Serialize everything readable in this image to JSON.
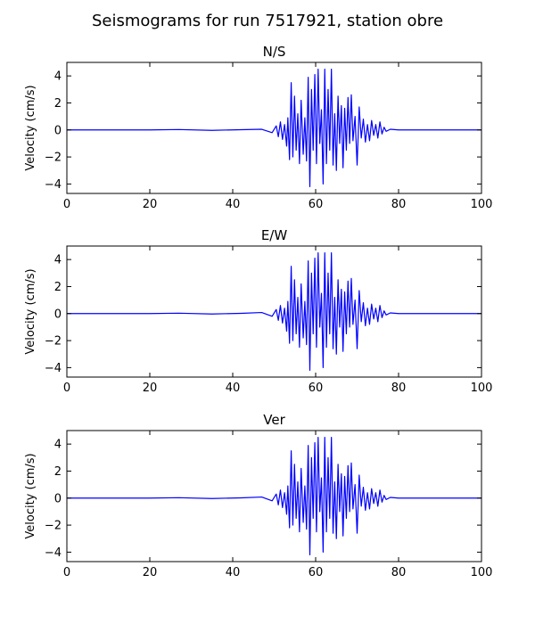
{
  "figure": {
    "title": "Seismograms for run 7517921, station obre"
  },
  "chart_data": [
    {
      "type": "line",
      "title": "N/S",
      "xlabel": "",
      "ylabel": "Velocity (cm/s)",
      "xlim": [
        0,
        100
      ],
      "ylim": [
        -4.7,
        5.0
      ],
      "xticks": [
        0,
        20,
        40,
        60,
        80,
        100
      ],
      "yticks": [
        -4,
        -2,
        0,
        2,
        4
      ],
      "grid": false,
      "line_color": "#0000ff",
      "series": [
        {
          "x": [
            0,
            10,
            20,
            27,
            35,
            42,
            47,
            49.5,
            50.5,
            51,
            51.5,
            52,
            52.5,
            53,
            53.3,
            53.7,
            54.1,
            54.5,
            54.9,
            55.3,
            55.7,
            56.1,
            56.5,
            57,
            57.4,
            57.8,
            58.2,
            58.6,
            59,
            59.4,
            59.8,
            60.2,
            60.6,
            61,
            61.4,
            61.8,
            62.2,
            62.6,
            63,
            63.4,
            63.8,
            64.2,
            64.6,
            65,
            65.4,
            65.8,
            66.2,
            66.6,
            67,
            67.4,
            67.8,
            68.2,
            68.6,
            69,
            69.5,
            70,
            70.5,
            71,
            71.5,
            72,
            72.5,
            73,
            73.5,
            74,
            74.5,
            75,
            75.5,
            76,
            76.5,
            77,
            78,
            80,
            90,
            100
          ],
          "y": [
            0,
            0,
            0,
            0.03,
            -0.03,
            0.02,
            0.05,
            -0.2,
            0.3,
            -0.5,
            0.6,
            -0.7,
            0.4,
            -1.2,
            0.9,
            -2.2,
            3.5,
            -2.0,
            2.5,
            -1.5,
            1.2,
            -2.5,
            2.2,
            -1.8,
            0.9,
            -2.3,
            3.9,
            -4.2,
            3.0,
            -1.5,
            4.1,
            -2.5,
            4.5,
            -1.0,
            1.5,
            -4.0,
            4.5,
            -2.5,
            3.0,
            -1.5,
            4.5,
            -2.6,
            1.2,
            -3.0,
            2.5,
            -1.0,
            1.8,
            -2.8,
            1.6,
            -1.5,
            2.4,
            -1.0,
            2.6,
            -0.8,
            1.0,
            -2.6,
            1.7,
            -0.6,
            0.8,
            -0.9,
            0.4,
            -0.8,
            0.7,
            -0.4,
            0.4,
            -0.6,
            0.6,
            -0.3,
            0.2,
            -0.1,
            0.05,
            0,
            0,
            0
          ]
        }
      ]
    },
    {
      "type": "line",
      "title": "E/W",
      "xlabel": "",
      "ylabel": "Velocity (cm/s)",
      "xlim": [
        0,
        100
      ],
      "ylim": [
        -4.7,
        5.0
      ],
      "xticks": [
        0,
        20,
        40,
        60,
        80,
        100
      ],
      "yticks": [
        -4,
        -2,
        0,
        2,
        4
      ],
      "grid": false,
      "line_color": "#0000ff",
      "series": [
        {
          "x": [
            0,
            10,
            20,
            27,
            35,
            42,
            47,
            49.5,
            50.5,
            51,
            51.5,
            52,
            52.5,
            53,
            53.3,
            53.7,
            54.1,
            54.5,
            54.9,
            55.3,
            55.7,
            56.1,
            56.5,
            57,
            57.4,
            57.8,
            58.2,
            58.6,
            59,
            59.4,
            59.8,
            60.2,
            60.6,
            61,
            61.4,
            61.8,
            62.2,
            62.6,
            63,
            63.4,
            63.8,
            64.2,
            64.6,
            65,
            65.4,
            65.8,
            66.2,
            66.6,
            67,
            67.4,
            67.8,
            68.2,
            68.6,
            69,
            69.5,
            70,
            70.5,
            71,
            71.5,
            72,
            72.5,
            73,
            73.5,
            74,
            74.5,
            75,
            75.5,
            76,
            76.5,
            77,
            78,
            80,
            90,
            100
          ],
          "y": [
            0,
            0,
            0,
            0.03,
            -0.03,
            0.02,
            0.08,
            -0.2,
            0.3,
            -0.5,
            0.6,
            -0.7,
            0.4,
            -1.3,
            0.9,
            -2.2,
            3.5,
            -2.0,
            2.5,
            -1.5,
            1.2,
            -2.5,
            2.2,
            -1.8,
            0.9,
            -2.3,
            3.9,
            -4.2,
            3.0,
            -1.5,
            4.1,
            -2.5,
            4.5,
            -1.0,
            1.5,
            -4.0,
            4.5,
            -2.5,
            3.0,
            -1.5,
            4.5,
            -2.6,
            1.2,
            -3.0,
            2.5,
            -1.0,
            1.8,
            -2.8,
            1.6,
            -1.5,
            2.4,
            -1.0,
            2.6,
            -0.8,
            1.0,
            -2.6,
            1.7,
            -0.6,
            0.8,
            -0.9,
            0.4,
            -0.8,
            0.7,
            -0.4,
            0.4,
            -0.6,
            0.6,
            -0.3,
            0.2,
            -0.1,
            0.05,
            0,
            0,
            0
          ]
        }
      ]
    },
    {
      "type": "line",
      "title": "Ver",
      "xlabel": "",
      "ylabel": "Velocity (cm/s)",
      "xlim": [
        0,
        100
      ],
      "ylim": [
        -4.7,
        5.0
      ],
      "xticks": [
        0,
        20,
        40,
        60,
        80,
        100
      ],
      "yticks": [
        -4,
        -2,
        0,
        2,
        4
      ],
      "grid": false,
      "line_color": "#0000ff",
      "series": [
        {
          "x": [
            0,
            10,
            20,
            27,
            35,
            42,
            47,
            49.5,
            50.5,
            51,
            51.5,
            52,
            52.5,
            53,
            53.3,
            53.7,
            54.1,
            54.5,
            54.9,
            55.3,
            55.7,
            56.1,
            56.5,
            57,
            57.4,
            57.8,
            58.2,
            58.6,
            59,
            59.4,
            59.8,
            60.2,
            60.6,
            61,
            61.4,
            61.8,
            62.2,
            62.6,
            63,
            63.4,
            63.8,
            64.2,
            64.6,
            65,
            65.4,
            65.8,
            66.2,
            66.6,
            67,
            67.4,
            67.8,
            68.2,
            68.6,
            69,
            69.5,
            70,
            70.5,
            71,
            71.5,
            72,
            72.5,
            73,
            73.5,
            74,
            74.5,
            75,
            75.5,
            76,
            76.5,
            77,
            78,
            80,
            90,
            100
          ],
          "y": [
            0,
            0,
            0,
            0.03,
            -0.03,
            0.02,
            0.08,
            -0.2,
            0.3,
            -0.5,
            0.6,
            -0.7,
            0.4,
            -1.2,
            0.9,
            -2.2,
            3.5,
            -2.0,
            2.5,
            -1.5,
            1.2,
            -2.5,
            2.2,
            -1.8,
            0.9,
            -2.3,
            3.9,
            -4.2,
            3.0,
            -1.5,
            4.1,
            -2.5,
            4.5,
            -1.0,
            1.5,
            -4.0,
            4.5,
            -2.5,
            3.0,
            -1.5,
            4.5,
            -2.6,
            1.2,
            -3.0,
            2.5,
            -1.0,
            1.8,
            -2.8,
            1.6,
            -1.5,
            2.4,
            -1.0,
            2.6,
            -0.8,
            1.0,
            -2.6,
            1.7,
            -0.6,
            0.8,
            -0.9,
            0.4,
            -0.8,
            0.7,
            -0.4,
            0.4,
            -0.6,
            0.6,
            -0.3,
            0.2,
            -0.1,
            0.05,
            0,
            0,
            0
          ]
        }
      ]
    }
  ]
}
